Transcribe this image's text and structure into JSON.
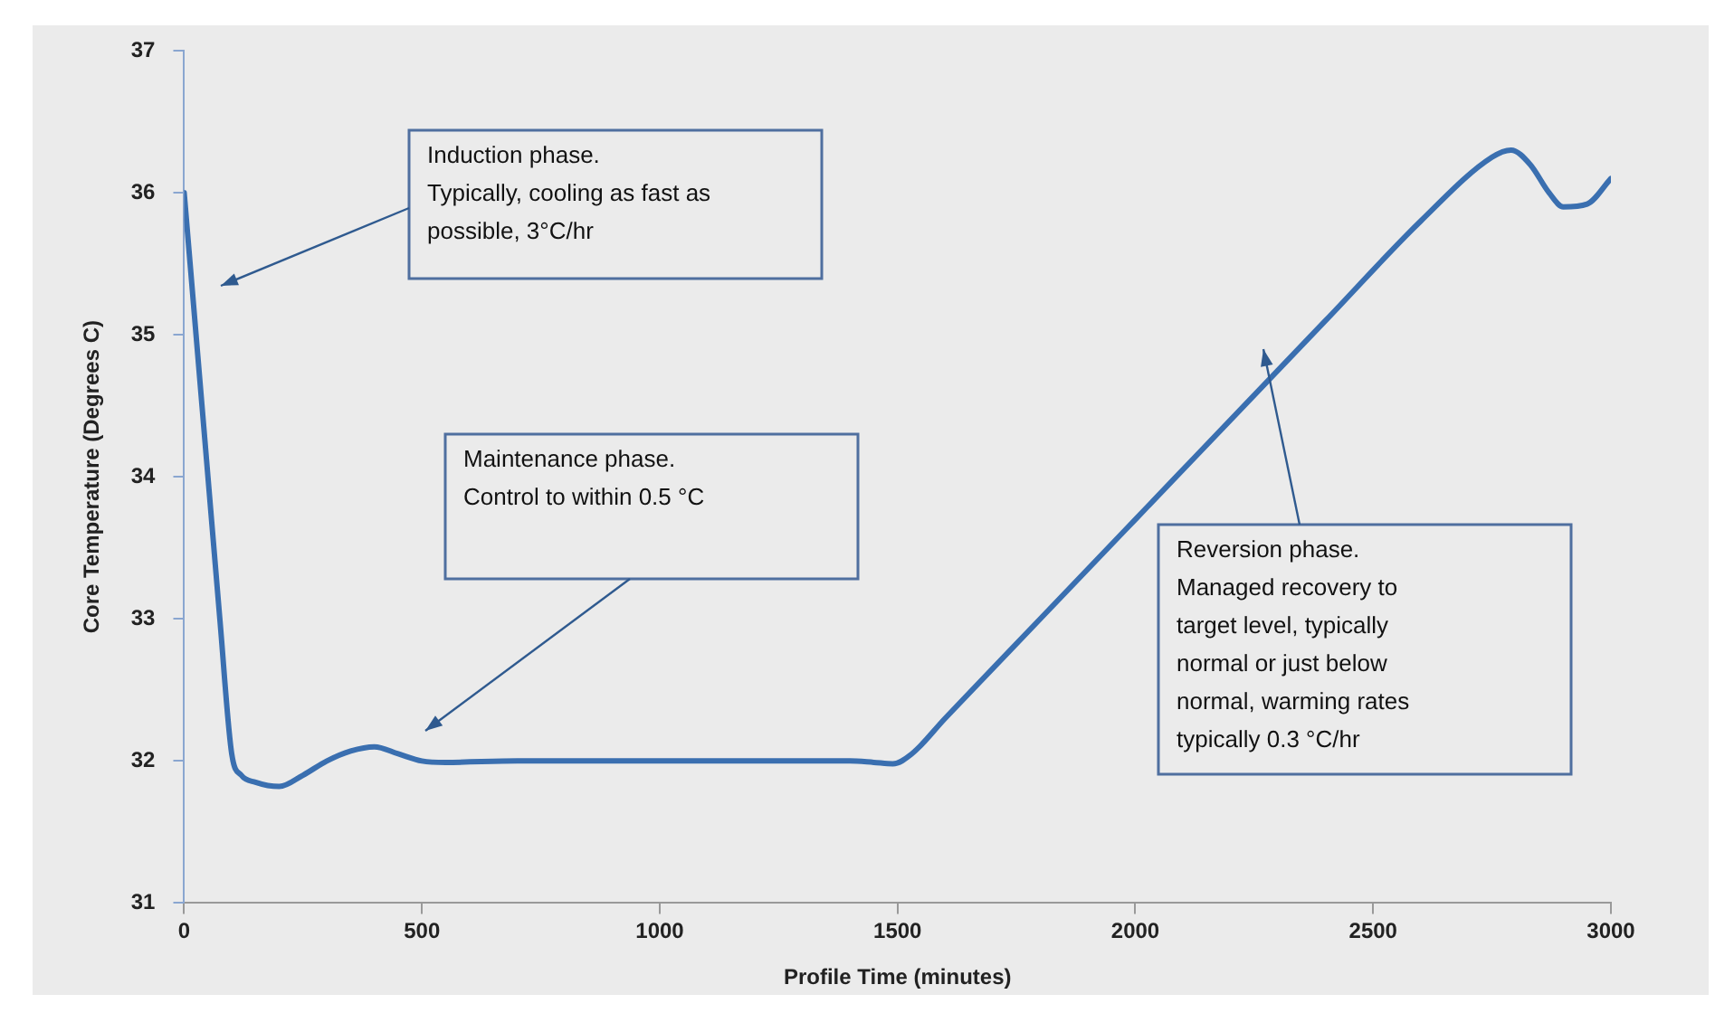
{
  "chart_data": {
    "type": "line",
    "xlabel": "Profile Time (minutes)",
    "ylabel": "Core Temperature (Degrees C)",
    "xlim": [
      0,
      3000
    ],
    "xticks": [
      0,
      500,
      1000,
      1500,
      2000,
      2500,
      3000
    ],
    "ylim": [
      31,
      37
    ],
    "yticks": [
      31,
      32,
      33,
      34,
      35,
      36,
      37
    ],
    "grid": false,
    "legend": false,
    "marker": "none",
    "line_style": "solid",
    "series": [
      {
        "color": "#3a6fb0",
        "x": [
          0,
          25,
          50,
          75,
          100,
          120,
          150,
          200,
          250,
          300,
          350,
          400,
          450,
          500,
          550,
          700,
          1000,
          1400,
          1450,
          1490,
          1530,
          1600,
          1800,
          2000,
          2200,
          2400,
          2600,
          2750,
          2790,
          2830,
          2870,
          2900,
          2950,
          3000
        ],
        "values": [
          36,
          35,
          34,
          33,
          32.05,
          31.9,
          31.85,
          31.82,
          31.9,
          32.0,
          32.07,
          32.1,
          32.05,
          32.0,
          31.99,
          32.0,
          32.0,
          32.0,
          31.99,
          31.98,
          32.05,
          32.3,
          33.0,
          33.7,
          34.4,
          35.1,
          35.8,
          36.25,
          36.3,
          36.2,
          36.0,
          35.9,
          35.92,
          36.1
        ]
      }
    ],
    "annotations": [
      "Induction phase.\nTypically, cooling as fast as\npossible, 3°C/hr",
      "Maintenance phase.\nControl to within 0.5 °C",
      "Reversion phase.\nManaged recovery to\ntarget level, typically\nnormal or just below\nnormal, warming rates\ntypically 0.3 °C/hr"
    ]
  }
}
